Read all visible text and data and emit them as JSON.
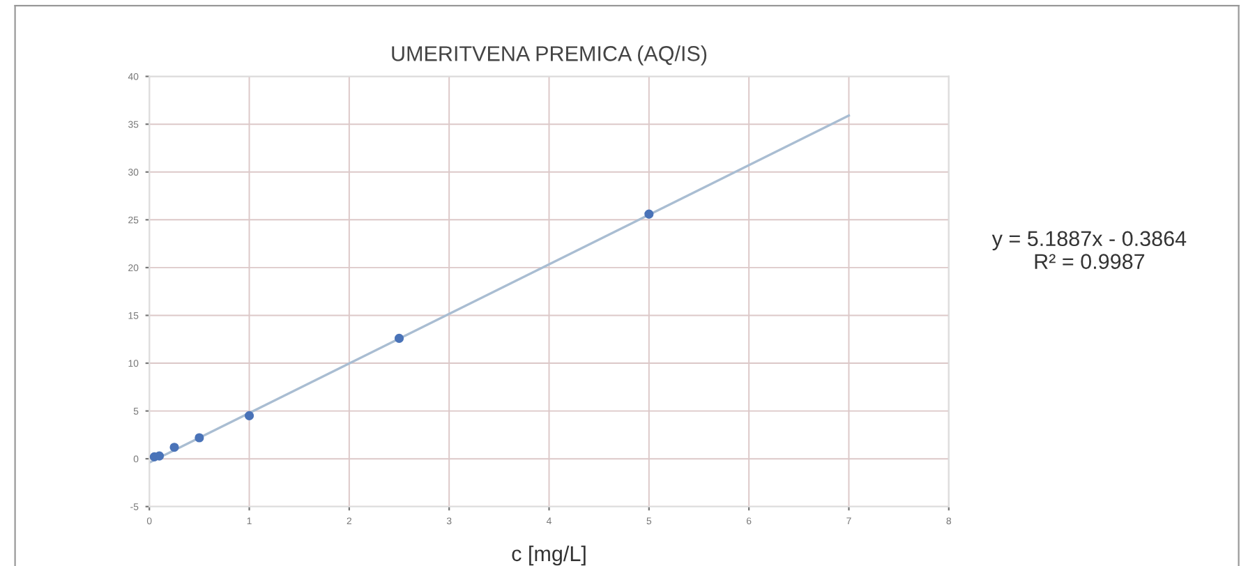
{
  "chart_data": {
    "type": "scatter",
    "title": "UMERITVENA PREMICA (AQ/IS)",
    "xlabel": "c [mg/L]",
    "xlim": [
      0,
      8
    ],
    "xticks": [
      0,
      1,
      2,
      3,
      4,
      5,
      6,
      7,
      8
    ],
    "ylim": [
      -5,
      40
    ],
    "yticks": [
      -5,
      0,
      5,
      10,
      15,
      20,
      25,
      30,
      35,
      40
    ],
    "grid": true,
    "marker": "circle",
    "series": [
      {
        "color": "#4a73b8",
        "x": [
          0.05,
          0.1,
          0.25,
          0.5,
          1,
          2.5,
          5
        ],
        "values": [
          0.2,
          0.3,
          1.2,
          2.2,
          4.5,
          12.6,
          25.6
        ]
      },
      {
        "type": "line",
        "color": "#a9bdd2",
        "marker": "none",
        "line_style": "solid",
        "x": [
          0,
          7
        ],
        "values": [
          -0.4,
          35.9
        ]
      }
    ],
    "annotations": [
      "y = 5.1887x - 0.3864\nR² = 0.9987"
    ]
  }
}
